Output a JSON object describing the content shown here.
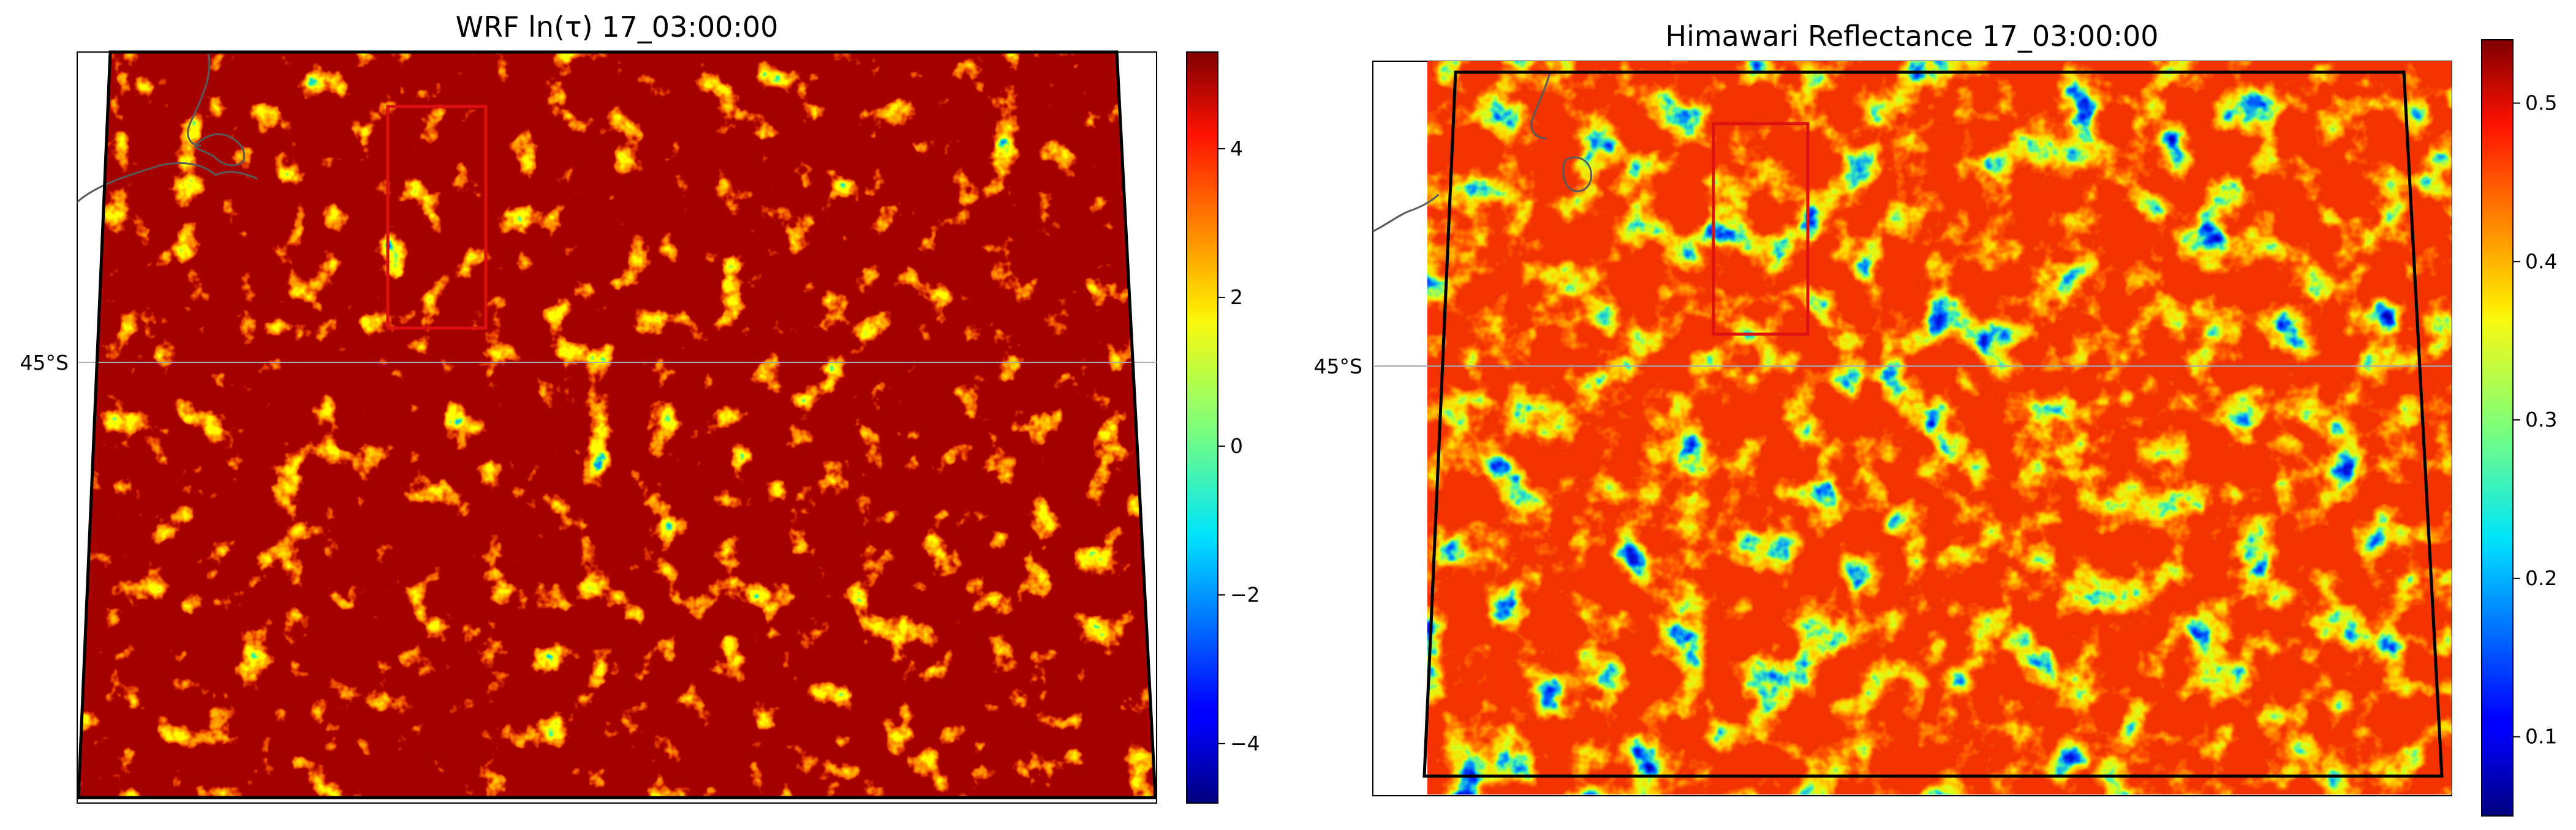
{
  "chart_data": [
    {
      "type": "heatmap",
      "title": "WRF ln(τ) 17_03:00:00",
      "latitude_label": "45°S",
      "colormap": "jet",
      "colorbar": {
        "ticks": [
          -4,
          -2,
          0,
          2,
          4
        ],
        "tick_labels": [
          "−4",
          "−2",
          "0",
          "2",
          "4"
        ],
        "range": [
          -4.8,
          5.3
        ]
      },
      "background": "#ffffff",
      "highlight_box_color": "#dd1111"
    },
    {
      "type": "heatmap",
      "title": "Himawari Reflectance 17_03:00:00",
      "latitude_label": "45°S",
      "colormap": "jet",
      "colorbar": {
        "ticks": [
          0.1,
          0.2,
          0.3,
          0.4,
          0.5
        ],
        "tick_labels": [
          "0.1",
          "0.2",
          "0.3",
          "0.4",
          "0.5"
        ],
        "range": [
          0.05,
          0.54
        ]
      },
      "background": "#00008f",
      "highlight_box_color": "#dd1111"
    }
  ]
}
